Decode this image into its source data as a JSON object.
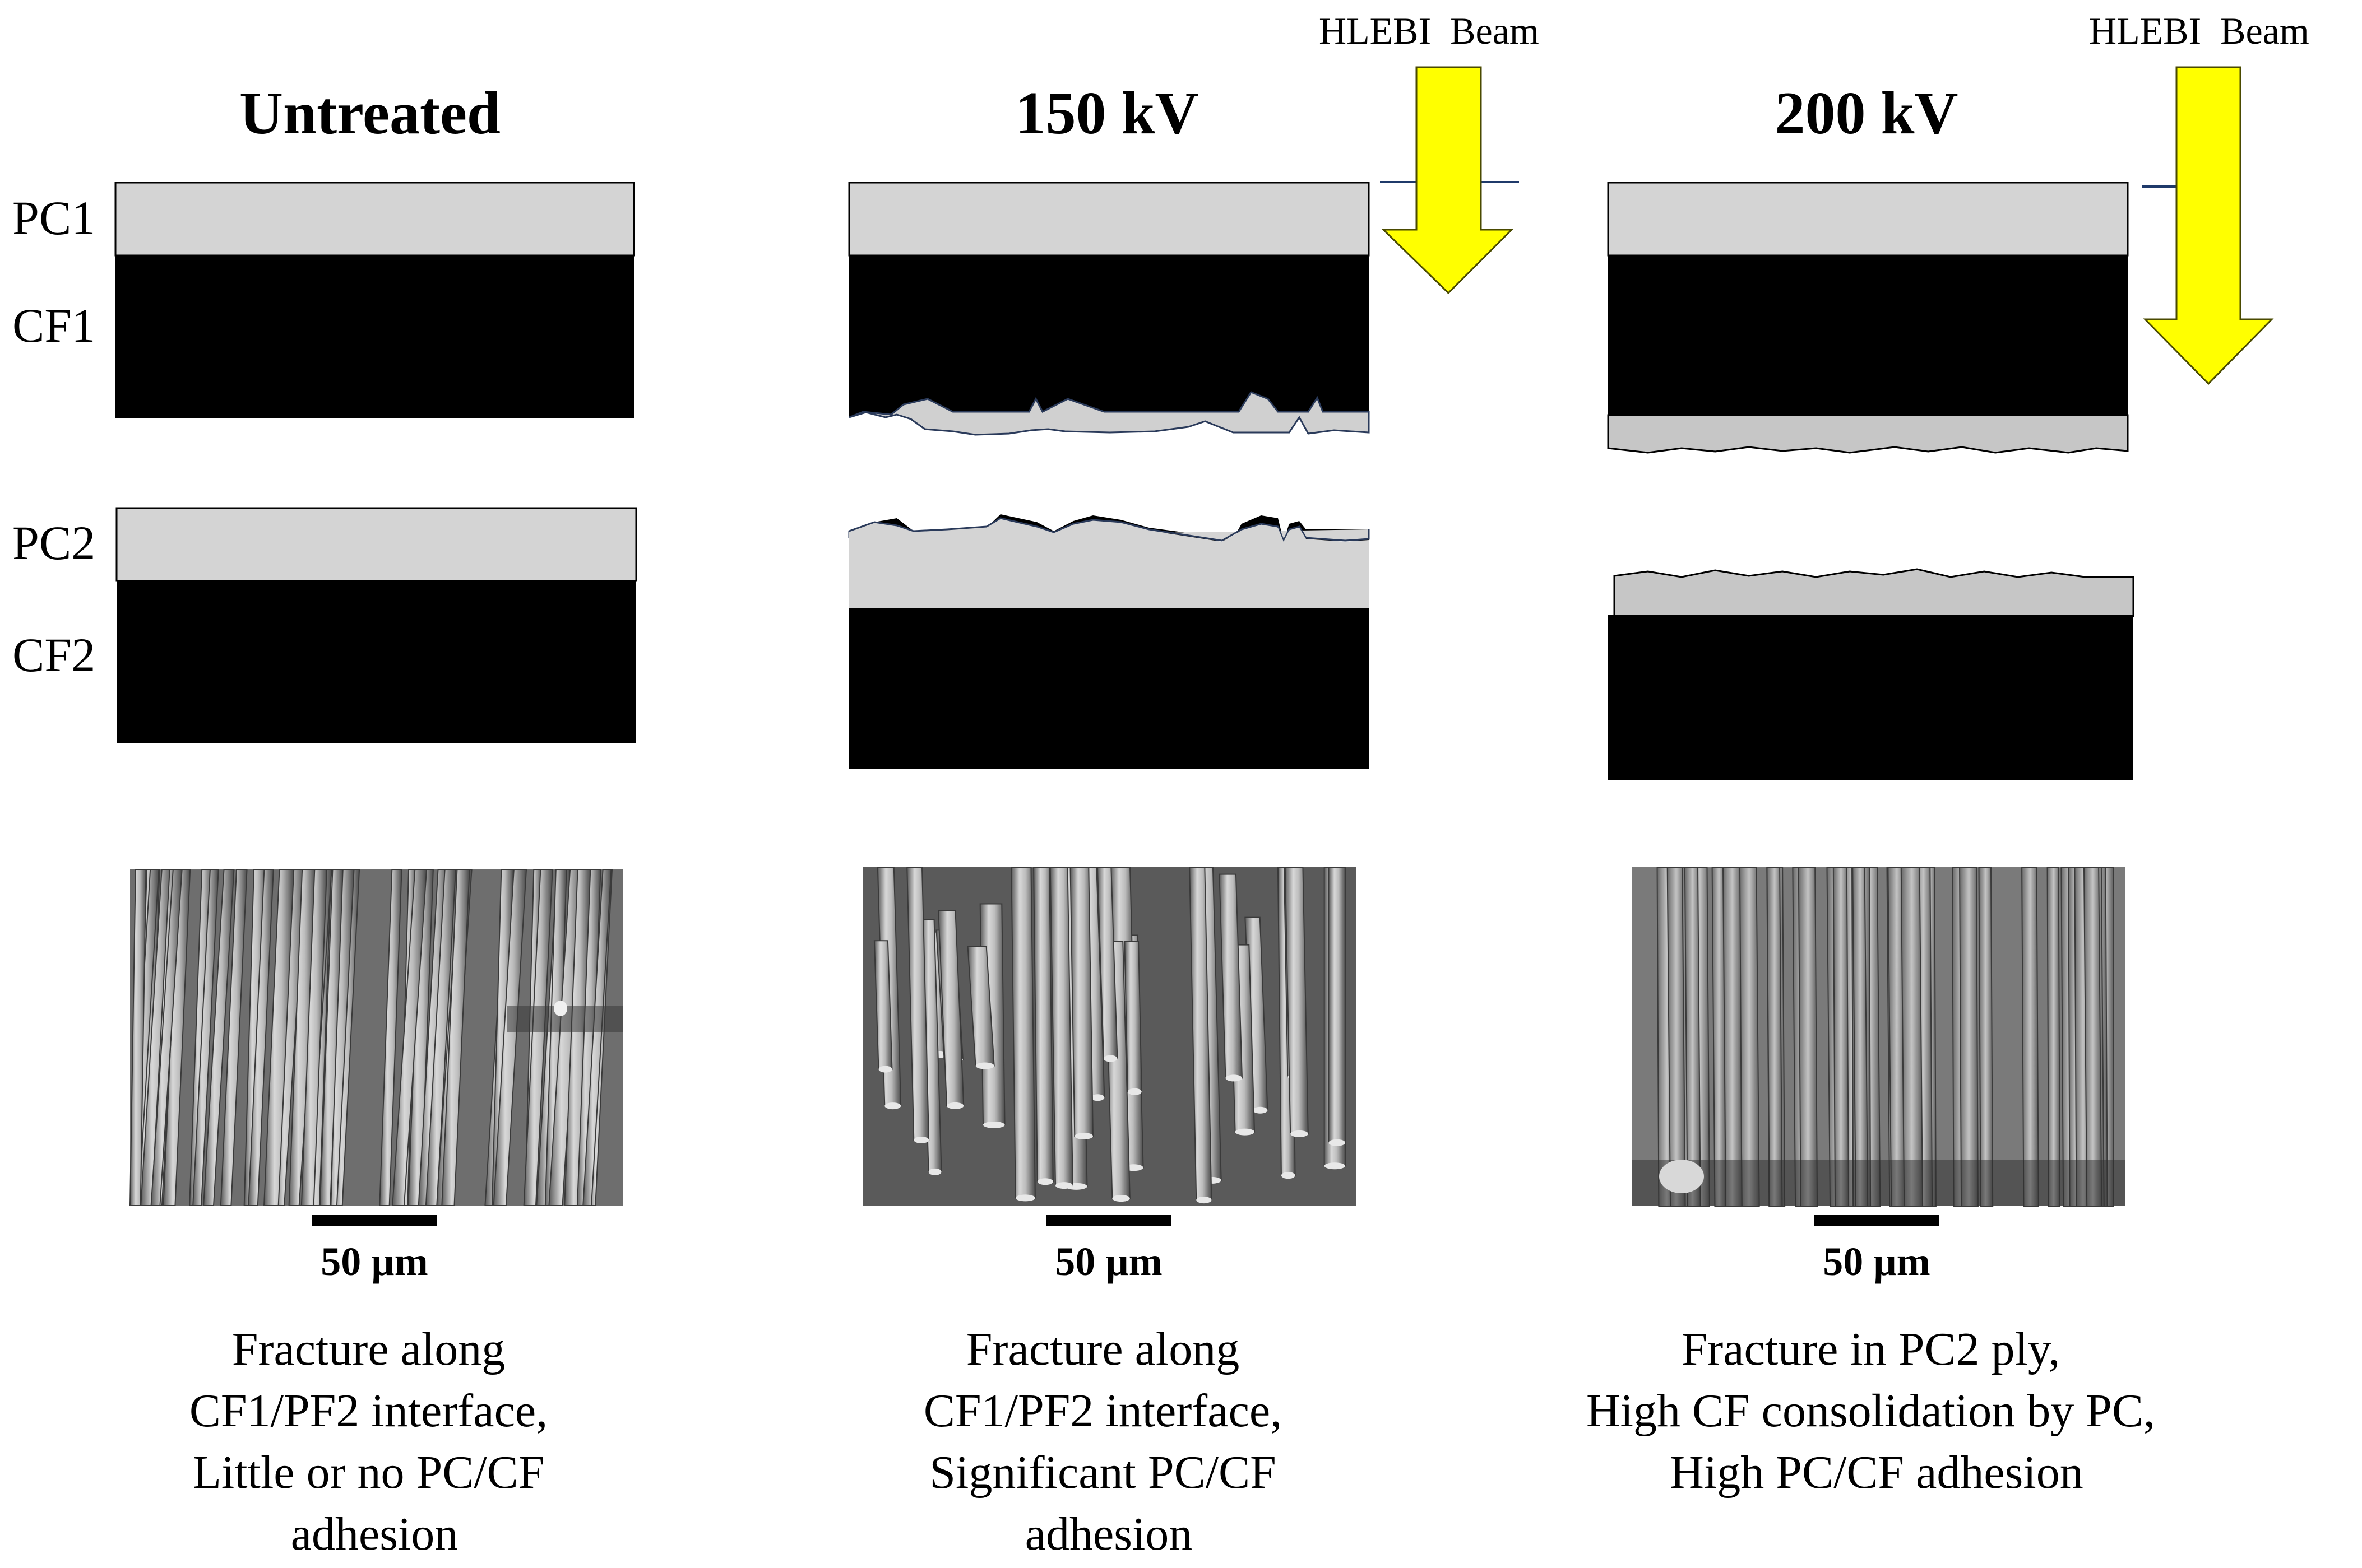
{
  "columns": [
    {
      "title": "Untreated",
      "scale_bar": "50 µm",
      "caption": [
        "Fracture along",
        "CF1/PF2 interface,",
        "Little or no PC/CF",
        "adhesion"
      ]
    },
    {
      "title": "150 kV",
      "beam_label": "HLEBI  Beam",
      "scale_bar": "50 µm",
      "caption": [
        "Fracture along",
        "CF1/PF2 interface,",
        "Significant PC/CF",
        "adhesion"
      ]
    },
    {
      "title": "200 kV",
      "beam_label": "HLEBI  Beam",
      "scale_bar": "50 µm",
      "caption": [
        "Fracture in PC2 ply,",
        "High CF consolidation by PC,",
        "High PC/CF adhesion"
      ]
    }
  ],
  "ply_labels": {
    "pc1": "PC1",
    "cf1": "CF1",
    "pc2": "PC2",
    "cf2": "CF2"
  },
  "colors": {
    "pc_layer": "#d4d4d4",
    "pc_layer_dark": "#c6c6c6",
    "cf_layer": "#000000",
    "beam_arrow": "#ffff00",
    "sem_background": "#6e6e6e"
  }
}
